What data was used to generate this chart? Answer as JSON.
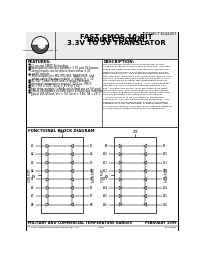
{
  "bg_color": "#ffffff",
  "header": {
    "logo_text": "Integrated Device Technology, Inc.",
    "title_line1": "FAST CMOS 16-BIT",
    "title_line2": "BIDIRECTIONAL",
    "title_line3": "3.3V TO 5V TRANSLATOR",
    "part_number": "IDT74FCT164245T"
  },
  "features_title": "FEATURES:",
  "features": [
    "0.5 micron CMOS Technology",
    "Bidirectional interface between 3.3V and 5V busses",
    "Control inputs can be driven from either 3.3V",
    "  or 5V circuits",
    "CMOS outputs per MIL-STD-883, NAND/NOR, and",
    "  when using inactive mode(s) = 0/high, K = 10",
    "24L MLF Corner SSOP and Cerquad Packages",
    "Extended commercial range of -40°C to +85°C",
    "Vcc = 5V ± 10%; Vcco = 3.7V to 3.6V",
    "High drive outputs (±8mA sink/±4mA out on 5V port)",
    "3-state off disables on both ports permits bus insertion",
    "Typical VOL/VOout: Vcc = 5V, Vcco = 3.6V, TA = 25°C"
  ],
  "desc_title": "DESCRIPTION:",
  "desc_lines": [
    "The FCT164245 16-bit 3.3V-to-5V translator is  built",
    "using advanced dual metal CMOS technology.  The high-",
    "speed low-power translator is designed to interface be-",
    "tween a 5.0V bus and a 3.0V bus in a mixed 5.0V/3.0V",
    "supply environment.  This enables system designers to",
    "interface 3.3V compatible 5.0V components with 5V com-",
    "ponents.  The direction and output enable controls oper-",
    "ate these devices as either two independent 8-bit bus",
    "repeaters or one 16-bit interface.  The A port interfaces",
    "with the 5.0V bus; the B port interfaces with the 3.0V",
    "bus.  The direction control (DIR) pin controls the direc-",
    "tion of data flow.  The output enables (OE) pins individ-",
    "ually control and disables both ports.  These control sig-",
    "nals can be driven from either 3.3V or 5V devices.",
    "   The FCT164245T is ideally suited for driving high-",
    "capacitance lines and low impedance backplanes.  The",
    "output buffers are designed with 3-state Off (disables)",
    "capability to allow 'hot insertion' of boards when used",
    "as backplane drivers.  They also allow interface between",
    "a mixed supply system and external 5V peripherals."
  ],
  "block_diag_title": "FUNCTIONAL BLOCK DIAGRAM",
  "footer_left": "MILITARY AND COMMERCIAL TEMPERATURE RANGES",
  "footer_right": "FEBRUARY 1999",
  "footer_copy": "© 1999 Integrated Device Technology, Inc.",
  "footer_mid": "D-76",
  "footer_doc": "DSC-6059"
}
